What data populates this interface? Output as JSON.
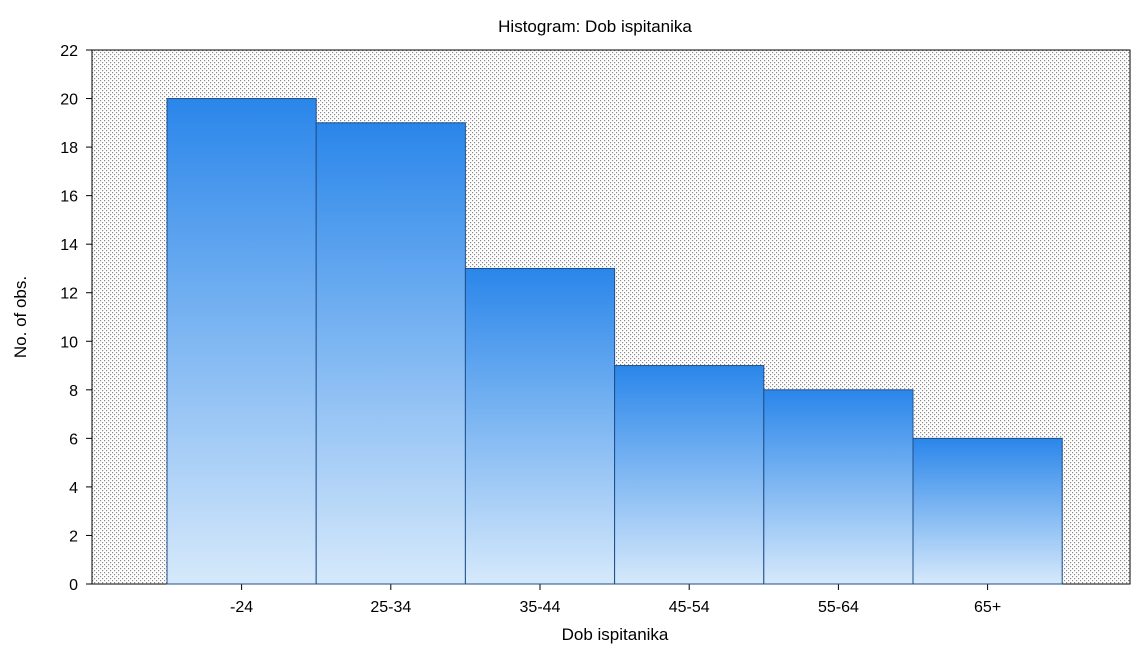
{
  "chart_data": {
    "type": "bar",
    "title": "Histogram: Dob ispitanika",
    "xlabel": "Dob ispitanika",
    "ylabel": "No. of obs.",
    "categories": [
      "-24",
      "25-34",
      "35-44",
      "45-54",
      "55-64",
      "65+"
    ],
    "values": [
      20,
      19,
      13,
      9,
      8,
      6
    ],
    "ylim": [
      0,
      22
    ],
    "yticks": [
      0,
      2,
      4,
      6,
      8,
      10,
      12,
      14,
      16,
      18,
      20,
      22
    ],
    "grid": true,
    "colors": {
      "bar_top": "#2a86ea",
      "bar_bottom": "#d6e9fb",
      "bar_stroke": "#1f4f8a",
      "plot_background": "#ffffff",
      "pattern_dot": "#8a8a8a"
    }
  }
}
